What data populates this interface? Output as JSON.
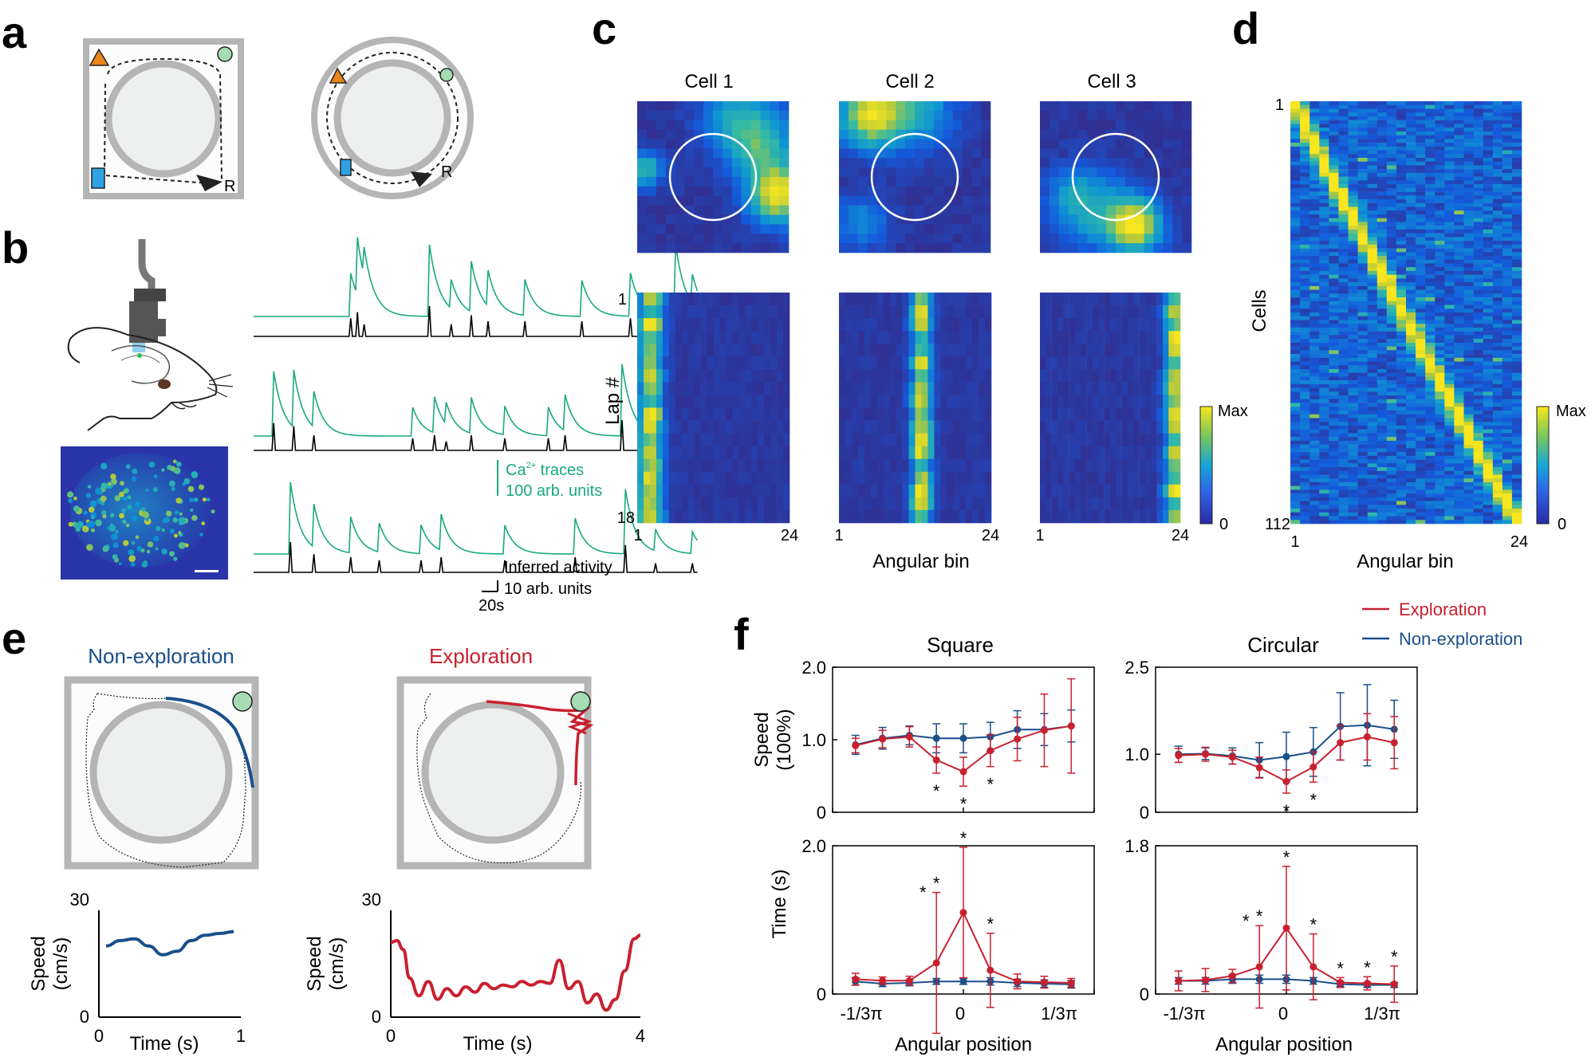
{
  "panels": {
    "a": {
      "letter": "a",
      "reward_label": "R"
    },
    "b": {
      "letter": "b",
      "ca_legend": [
        "Ca",
        "2+",
        " traces"
      ],
      "ca_scale": "100 arb. units",
      "inferred_legend": "Inferred activity",
      "inferred_scale": "10 arb. units",
      "time_scale": "20s"
    },
    "c": {
      "letter": "c",
      "cells": [
        "Cell 1",
        "Cell 2",
        "Cell 3"
      ],
      "ylabel": "Lap #",
      "lap_ticks": [
        "1",
        "18"
      ],
      "bin_ticks": [
        "1",
        "24"
      ],
      "xlabel": "Angular bin",
      "colorbar": {
        "max": "Max",
        "min": "0"
      }
    },
    "d": {
      "letter": "d",
      "ylabel": "Cells",
      "cell_ticks": [
        "1",
        "112"
      ],
      "bin_ticks": [
        "1",
        "24"
      ],
      "xlabel": "Angular bin",
      "colorbar": {
        "max": "Max",
        "min": "0"
      }
    },
    "e": {
      "letter": "e",
      "titles": [
        "Non-exploration",
        "Exploration"
      ],
      "ylabel_line1": "Speed",
      "ylabel_line2": "(cm/s)",
      "xlabel": "Time (s)",
      "left_ticks": {
        "ymax": "30",
        "ymin": "0",
        "x0": "0",
        "x1": "1"
      },
      "right_ticks": {
        "ymax": "30",
        "ymin": "0",
        "x0": "0",
        "x1": "4"
      }
    },
    "f": {
      "letter": "f",
      "legend": {
        "exploration": "Exploration",
        "non_exploration": "Non-exploration"
      },
      "titles": [
        "Square",
        "Circular"
      ],
      "speed_ylabel_line1": "Speed",
      "speed_ylabel_line2": "(100%)",
      "time_ylabel": "Time (s)",
      "xlabel": "Angular position",
      "xticks": [
        "-1/3π",
        "0",
        "1/3π"
      ],
      "star": "*"
    }
  },
  "colors": {
    "exploration": "#c8202f",
    "non_exploration": "#1a4f8a",
    "trace_green": "#1aa882",
    "arena_gray": "#b5b5b5",
    "arena_fill": "#eef0ef"
  },
  "chart_data": [
    {
      "type": "line",
      "id": "square-speed",
      "title": "Square",
      "ylabel": "Speed (100%)",
      "xlabel": "",
      "x": [
        -8,
        -6,
        -4,
        -2,
        0,
        2,
        4,
        6,
        8
      ],
      "ylim": [
        0,
        2.0
      ],
      "yticks": [
        0,
        1.0,
        2.0
      ],
      "series": [
        {
          "name": "Non-exploration",
          "values": [
            0.93,
            1.02,
            1.06,
            1.02,
            1.02,
            1.04,
            1.14,
            1.14,
            1.19
          ],
          "errors": [
            0.13,
            0.15,
            0.13,
            0.2,
            0.2,
            0.2,
            0.26,
            0.22,
            0.22
          ]
        },
        {
          "name": "Exploration",
          "values": [
            0.92,
            1.01,
            1.04,
            0.72,
            0.56,
            0.85,
            1.01,
            1.13,
            1.19
          ],
          "errors": [
            0.1,
            0.12,
            0.14,
            0.18,
            0.2,
            0.22,
            0.3,
            0.5,
            0.65
          ]
        }
      ],
      "significant_x": [
        -2,
        0,
        2
      ]
    },
    {
      "type": "line",
      "id": "circular-speed",
      "title": "Circular",
      "ylabel": "",
      "xlabel": "",
      "x": [
        -8,
        -6,
        -4,
        -2,
        0,
        2,
        4,
        6,
        8
      ],
      "ylim": [
        0,
        2.5
      ],
      "yticks": [
        0,
        1.0,
        2.5
      ],
      "series": [
        {
          "name": "Non-exploration",
          "values": [
            1.0,
            1.01,
            0.97,
            0.9,
            0.96,
            1.04,
            1.48,
            1.5,
            1.43
          ],
          "errors": [
            0.14,
            0.1,
            0.14,
            0.3,
            0.42,
            0.42,
            0.58,
            0.7,
            0.5
          ]
        },
        {
          "name": "Exploration",
          "values": [
            0.98,
            1.0,
            0.95,
            0.77,
            0.53,
            0.78,
            1.2,
            1.3,
            1.2
          ],
          "errors": [
            0.12,
            0.12,
            0.12,
            0.18,
            0.2,
            0.26,
            0.3,
            0.4,
            0.45
          ]
        }
      ],
      "significant_x": [
        0,
        2
      ]
    },
    {
      "type": "line",
      "id": "square-time",
      "title": "",
      "ylabel": "Time (s)",
      "xlabel": "Angular position",
      "x": [
        -8,
        -6,
        -4,
        -2,
        0,
        2,
        4,
        6,
        8
      ],
      "xticks": [
        "-1/3π",
        "0",
        "1/3π"
      ],
      "ylim": [
        0,
        2.0
      ],
      "yticks": [
        0,
        2.0
      ],
      "series": [
        {
          "name": "Non-exploration",
          "values": [
            0.17,
            0.14,
            0.15,
            0.17,
            0.17,
            0.17,
            0.15,
            0.14,
            0.13
          ],
          "errors": [
            0.05,
            0.04,
            0.04,
            0.04,
            0.04,
            0.05,
            0.05,
            0.05,
            0.05
          ]
        },
        {
          "name": "Exploration",
          "values": [
            0.2,
            0.18,
            0.18,
            0.42,
            1.1,
            0.32,
            0.17,
            0.16,
            0.15
          ],
          "errors": [
            0.08,
            0.05,
            0.06,
            0.95,
            0.88,
            0.5,
            0.1,
            0.08,
            0.06
          ]
        }
      ],
      "significant_x": [
        -3,
        -2,
        0,
        2
      ]
    },
    {
      "type": "line",
      "id": "circular-time",
      "title": "",
      "ylabel": "",
      "xlabel": "Angular position",
      "x": [
        -8,
        -6,
        -4,
        -2,
        0,
        2,
        4,
        6,
        8
      ],
      "xticks": [
        "-1/3π",
        "0",
        "1/3π"
      ],
      "ylim": [
        0,
        1.8
      ],
      "yticks": [
        0,
        1.8
      ],
      "series": [
        {
          "name": "Non-exploration",
          "values": [
            0.16,
            0.16,
            0.18,
            0.18,
            0.18,
            0.16,
            0.12,
            0.11,
            0.11
          ],
          "errors": [
            0.04,
            0.04,
            0.05,
            0.05,
            0.05,
            0.04,
            0.03,
            0.03,
            0.03
          ]
        },
        {
          "name": "Exploration",
          "values": [
            0.16,
            0.17,
            0.22,
            0.33,
            0.8,
            0.33,
            0.14,
            0.13,
            0.12
          ],
          "errors": [
            0.12,
            0.14,
            0.08,
            0.5,
            0.75,
            0.4,
            0.06,
            0.08,
            0.22
          ]
        }
      ],
      "significant_x": [
        -3,
        -2,
        0,
        2,
        4,
        6,
        8
      ]
    },
    {
      "type": "line",
      "id": "e-speed-nonexploration",
      "title": "Non-exploration",
      "ylabel": "Speed (cm/s)",
      "xlabel": "Time (s)",
      "ylim": [
        0,
        30
      ],
      "xlim": [
        0,
        1
      ],
      "x": [
        0.05,
        0.15,
        0.25,
        0.35,
        0.45,
        0.55,
        0.65,
        0.75,
        0.85,
        0.95
      ],
      "values": [
        20,
        21.5,
        22,
        20,
        17.5,
        18.5,
        21.5,
        23,
        23.5,
        24
      ]
    },
    {
      "type": "line",
      "id": "e-speed-exploration",
      "title": "Exploration",
      "ylabel": "Speed (cm/s)",
      "xlabel": "Time (s)",
      "ylim": [
        0,
        30
      ],
      "xlim": [
        0,
        4
      ],
      "x": [
        0.0,
        0.1,
        0.2,
        0.3,
        0.45,
        0.6,
        0.75,
        0.9,
        1.05,
        1.2,
        1.35,
        1.5,
        1.65,
        1.8,
        1.95,
        2.1,
        2.25,
        2.4,
        2.55,
        2.7,
        2.85,
        3.0,
        3.15,
        3.3,
        3.45,
        3.6,
        3.75,
        3.9,
        4.0
      ],
      "values": [
        21,
        21.5,
        19,
        11,
        6,
        10,
        5,
        8,
        6,
        8.5,
        7,
        9.5,
        8,
        9,
        8.5,
        10,
        9,
        10,
        9.5,
        16,
        8,
        10,
        4,
        6.5,
        2,
        5,
        13,
        22,
        23
      ]
    }
  ]
}
